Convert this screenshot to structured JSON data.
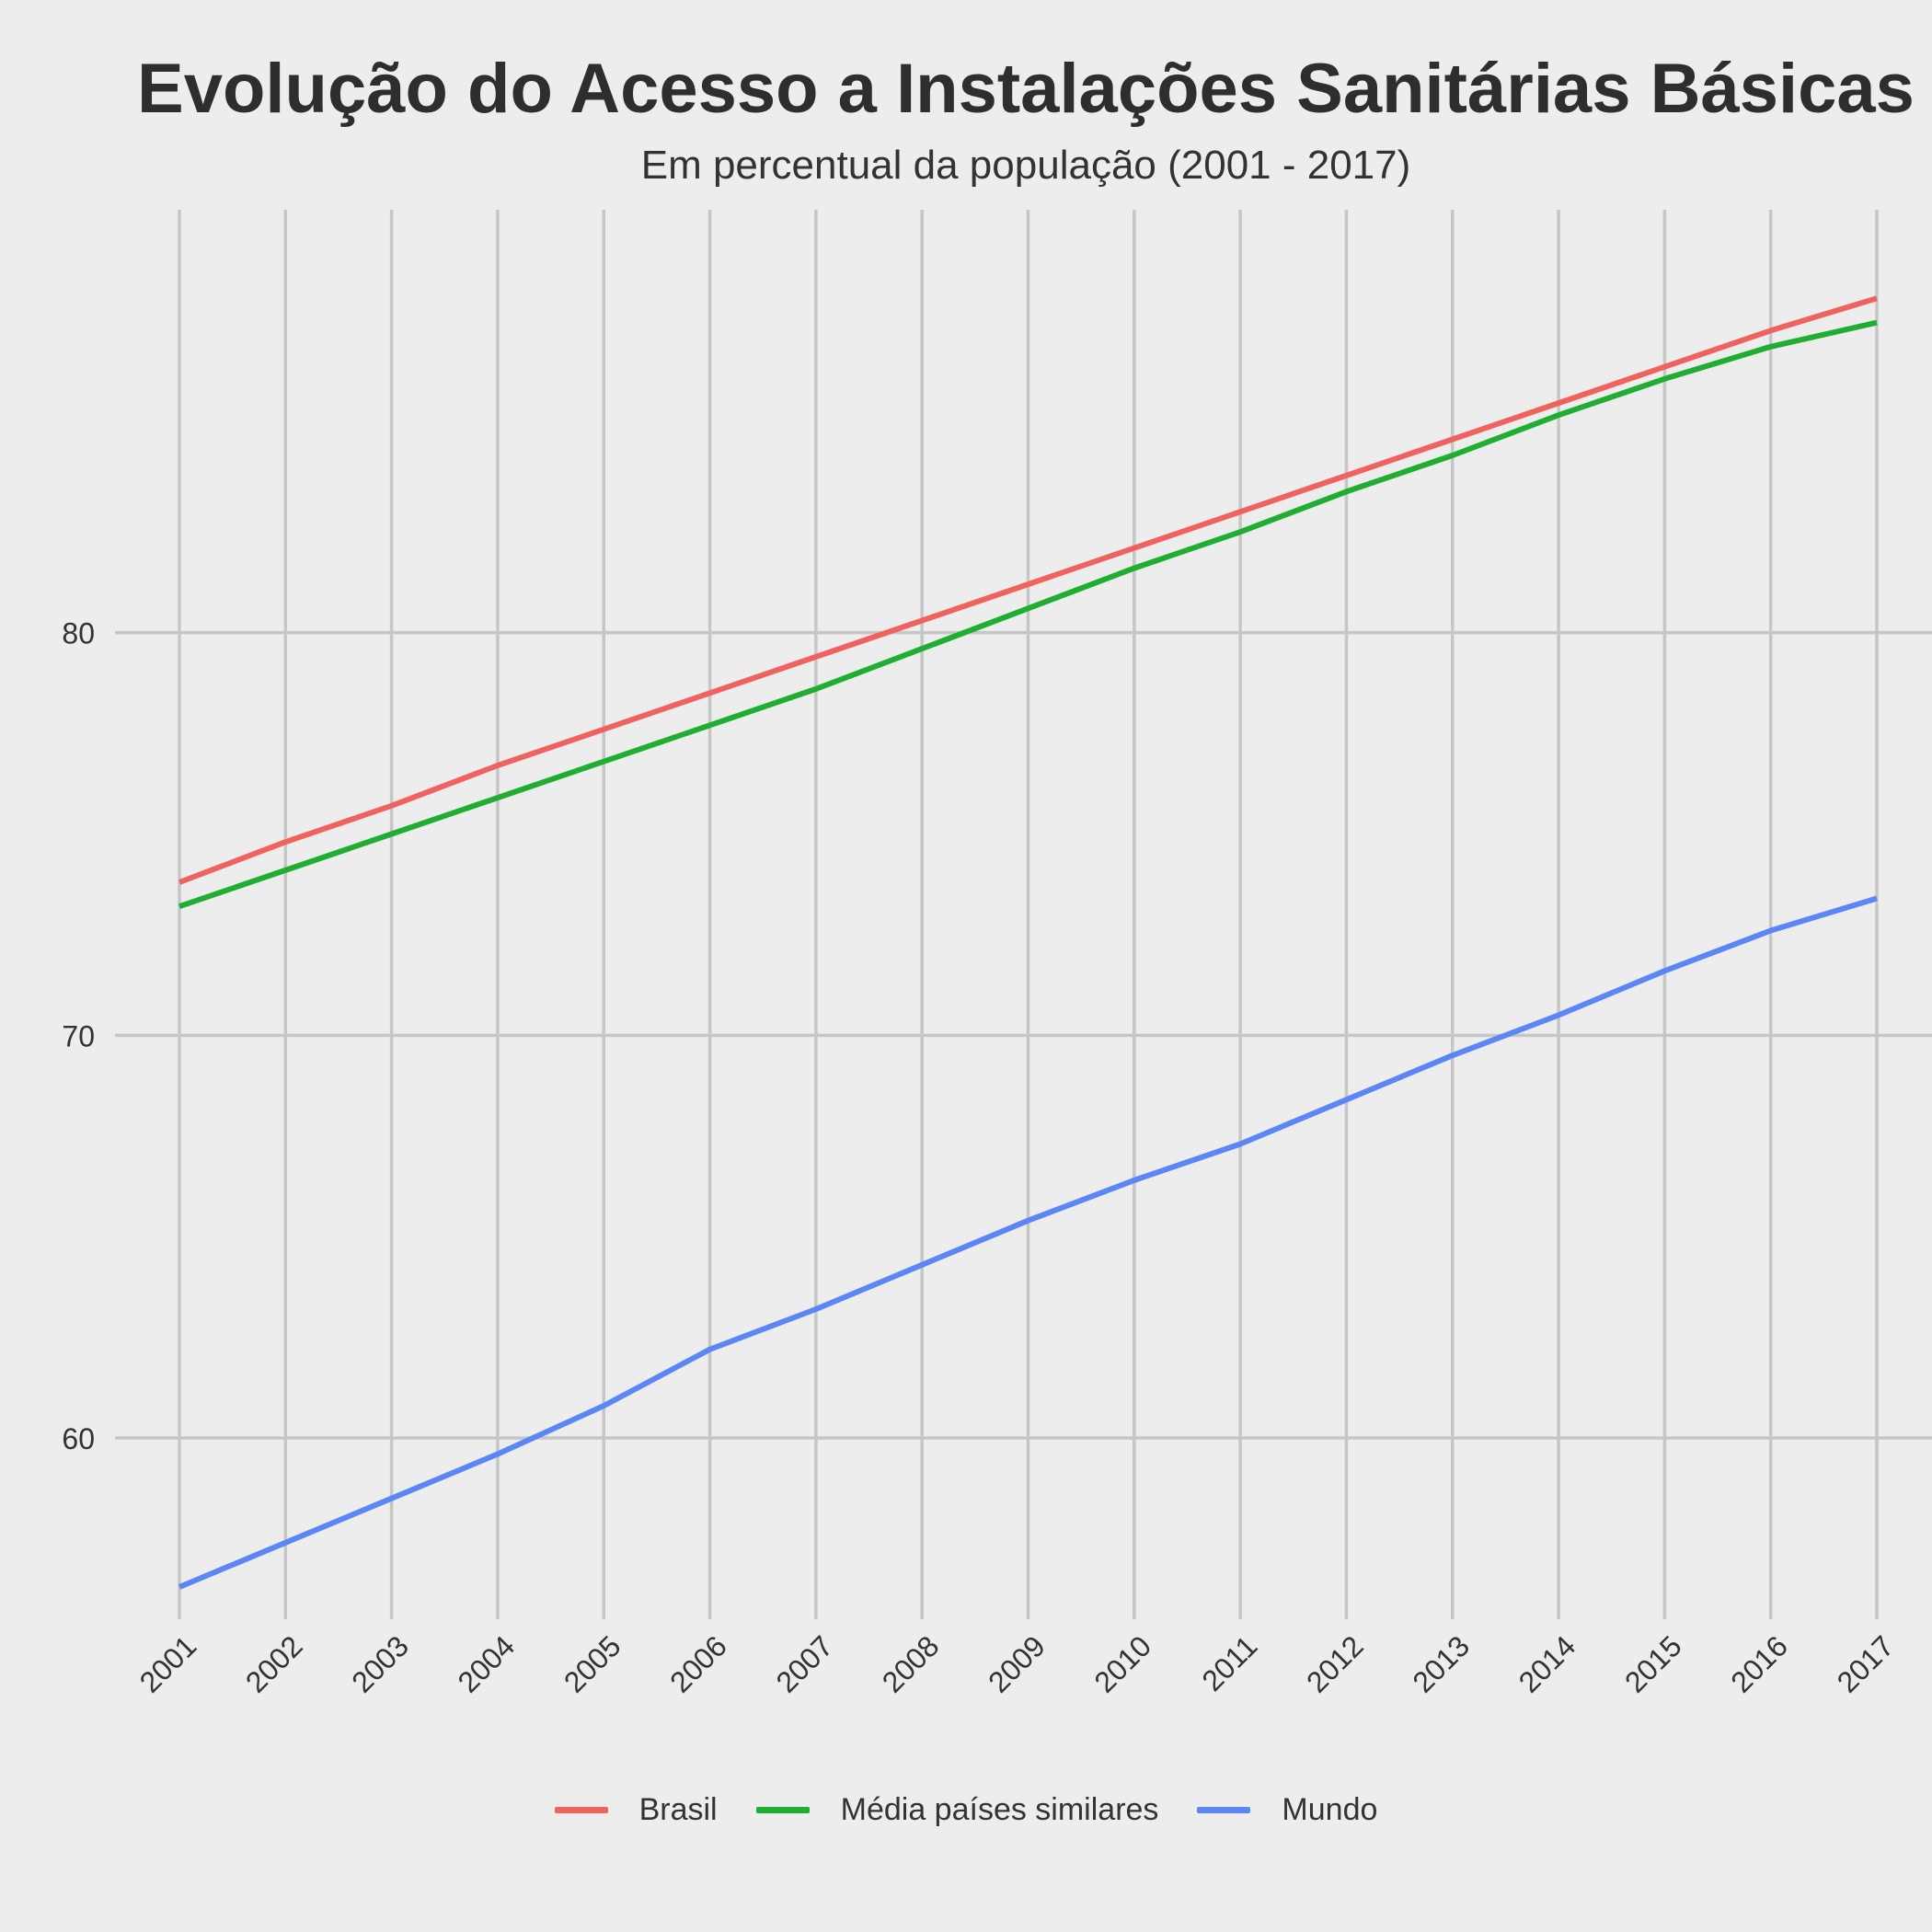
{
  "chart_data": {
    "type": "line",
    "title": "Evolução do Acesso a Instalações Sanitárias Básicas",
    "subtitle": "Em percentual da população (2001 - 2017)",
    "xlabel": "",
    "ylabel": "",
    "x": [
      2001,
      2002,
      2003,
      2004,
      2005,
      2006,
      2007,
      2008,
      2009,
      2010,
      2011,
      2012,
      2013,
      2014,
      2015,
      2016,
      2017
    ],
    "xlim": [
      2001,
      2017
    ],
    "ylim": [
      55.5,
      90.5
    ],
    "yticks": [
      60,
      70,
      80
    ],
    "grid": true,
    "legend_position": "bottom",
    "series": [
      {
        "name": "Brasil",
        "color": "#f0625e",
        "values": [
          73.8,
          74.8,
          75.7,
          76.7,
          77.6,
          78.5,
          79.4,
          80.3,
          81.2,
          82.1,
          83.0,
          83.9,
          84.8,
          85.7,
          86.6,
          87.5,
          88.3
        ]
      },
      {
        "name": "Média países similares",
        "color": "#1fae31",
        "values": [
          73.2,
          74.1,
          75.0,
          75.9,
          76.8,
          77.7,
          78.6,
          79.6,
          80.6,
          81.6,
          82.5,
          83.5,
          84.4,
          85.4,
          86.3,
          87.1,
          87.7
        ]
      },
      {
        "name": "Mundo",
        "color": "#5b86f5",
        "values": [
          56.3,
          57.4,
          58.5,
          59.6,
          60.8,
          62.2,
          63.2,
          64.3,
          65.4,
          66.4,
          67.3,
          68.4,
          69.5,
          70.5,
          71.6,
          72.6,
          73.4
        ]
      }
    ]
  }
}
